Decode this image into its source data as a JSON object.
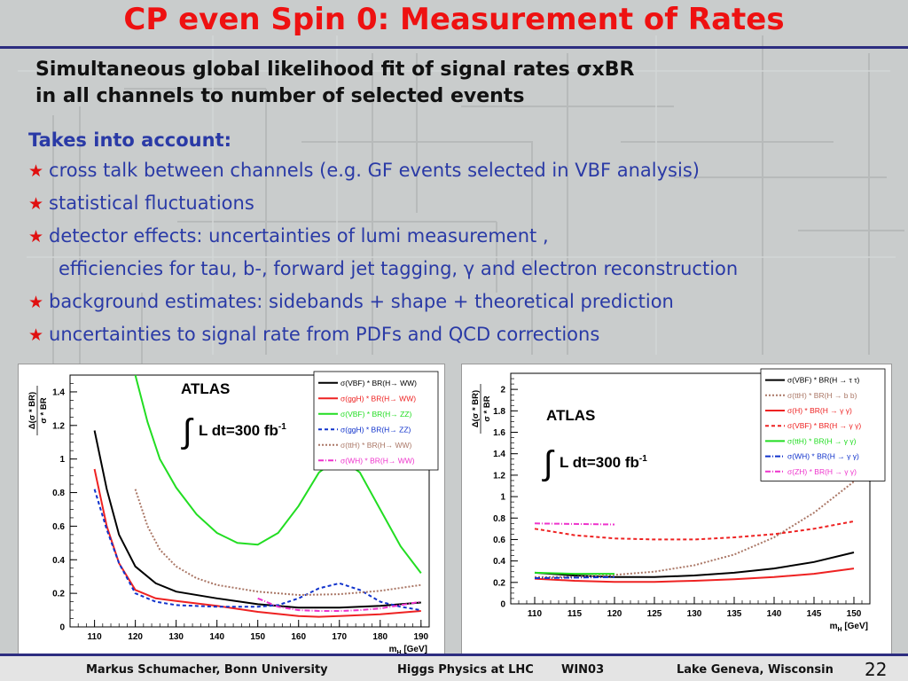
{
  "slide": {
    "title": "CP even Spin 0: Measurement of Rates",
    "subtitle_line1_pre": "Simultaneous global likelihood fit of signal rates ",
    "subtitle_sigma": "σ",
    "subtitle_line1_post": "xBR",
    "subtitle_line2": "in all channels to number of selected events",
    "takes_into_account": "Takes into account:",
    "bullets": [
      "cross talk between channels (e.g. GF events selected in VBF analysis)",
      "statistical fluctuations",
      "detector effects: uncertainties of lumi measurement ,",
      "background estimates: sidebands + shape + theoretical prediction",
      "uncertainties to signal rate from PDFs and QCD corrections"
    ],
    "continuation_pre": "efficiencies for tau, b-, forward jet tagging, ",
    "continuation_gamma": "γ",
    "continuation_post": " and electron reconstruction",
    "star_glyph": "★"
  },
  "footer": {
    "author": "Markus Schumacher,  Bonn University",
    "talk": "Higgs Physics at LHC",
    "conference": "WIN03",
    "location": "Lake Geneva, Wisconsin",
    "page": "22"
  },
  "colors": {
    "title": "#ee1111",
    "bullet_text": "#2a3aa6",
    "star": "#e01010",
    "rule": "#2d2d80"
  },
  "chart_data": [
    {
      "type": "line",
      "atlas_label": "ATLAS",
      "lumi_label": "L dt=300 fb",
      "lumi_exp": "-1",
      "ylabel_num": "Δ(σ * BR)",
      "ylabel_den": "σ * BR",
      "xlabel": "m",
      "xlabel_sub": "H",
      "xlabel_unit": " [GeV]",
      "xlim": [
        104,
        192
      ],
      "ylim": [
        0,
        1.5
      ],
      "xticks": [
        110,
        120,
        130,
        140,
        150,
        160,
        170,
        180,
        190
      ],
      "yticks": [
        0,
        0.2,
        0.4,
        0.6,
        0.8,
        1,
        1.2,
        1.4
      ],
      "series": [
        {
          "name": "σ(VBF) * BR(H→ WW)",
          "color": "#000000",
          "dash": "",
          "x": [
            110,
            113,
            116,
            120,
            125,
            130,
            140,
            150,
            160,
            170,
            180,
            190
          ],
          "y": [
            1.17,
            0.82,
            0.55,
            0.36,
            0.26,
            0.21,
            0.17,
            0.135,
            0.115,
            0.115,
            0.125,
            0.145
          ]
        },
        {
          "name": "σ(ggH) * BR(H→ WW)",
          "color": "#ee2222",
          "dash": "",
          "x": [
            110,
            113,
            116,
            120,
            125,
            130,
            140,
            150,
            160,
            165,
            170,
            180,
            190
          ],
          "y": [
            0.94,
            0.6,
            0.38,
            0.22,
            0.17,
            0.155,
            0.125,
            0.09,
            0.065,
            0.06,
            0.065,
            0.075,
            0.095
          ]
        },
        {
          "name": "σ(VBF) * BR(H→ ZZ)",
          "color": "#22dd22",
          "dash": "",
          "x": [
            120,
            123,
            126,
            130,
            135,
            140,
            145,
            150,
            155,
            160,
            165,
            170,
            175,
            180,
            185,
            190
          ],
          "y": [
            1.5,
            1.22,
            1.0,
            0.83,
            0.67,
            0.56,
            0.5,
            0.49,
            0.56,
            0.72,
            0.92,
            1.01,
            0.92,
            0.7,
            0.48,
            0.32
          ]
        },
        {
          "name": "σ(ggH) * BR(H→ ZZ)",
          "color": "#1133cc",
          "dash": "4,3",
          "x": [
            110,
            113,
            116,
            120,
            125,
            130,
            140,
            150,
            155,
            160,
            165,
            170,
            175,
            180,
            185,
            190
          ],
          "y": [
            0.82,
            0.58,
            0.38,
            0.2,
            0.15,
            0.13,
            0.12,
            0.12,
            0.13,
            0.17,
            0.23,
            0.26,
            0.22,
            0.15,
            0.12,
            0.1
          ]
        },
        {
          "name": "σ(ttH) * BR(H→ WW)",
          "color": "#aa7766",
          "dash": "2,2",
          "x": [
            120,
            123,
            126,
            130,
            135,
            140,
            150,
            160,
            170,
            180,
            190
          ],
          "y": [
            0.82,
            0.6,
            0.46,
            0.36,
            0.29,
            0.25,
            0.21,
            0.19,
            0.195,
            0.215,
            0.25
          ]
        },
        {
          "name": "σ(WH) * BR(H→ WW)",
          "color": "#ee33cc",
          "dash": "6,2,1,2",
          "x": [
            150,
            155,
            160,
            165,
            170,
            175,
            180,
            185,
            190
          ],
          "y": [
            0.17,
            0.12,
            0.1,
            0.095,
            0.095,
            0.1,
            0.11,
            0.13,
            0.15
          ]
        }
      ]
    },
    {
      "type": "line",
      "atlas_label": "ATLAS",
      "lumi_label": "L dt=300 fb",
      "lumi_exp": "-1",
      "ylabel_num": "Δ(σ * BR)",
      "ylabel_den": "σ * BR",
      "xlabel": "m",
      "xlabel_sub": "H",
      "xlabel_unit": " [GeV]",
      "xlim": [
        107,
        152
      ],
      "ylim": [
        0,
        2.15
      ],
      "xticks": [
        110,
        115,
        120,
        125,
        130,
        135,
        140,
        145,
        150
      ],
      "yticks": [
        0,
        0.2,
        0.4,
        0.6,
        0.8,
        1,
        1.2,
        1.4,
        1.6,
        1.8,
        2
      ],
      "series": [
        {
          "name": "σ(VBF) * BR(H → τ τ)",
          "color": "#000000",
          "dash": "",
          "x": [
            110,
            115,
            120,
            125,
            130,
            135,
            140,
            145,
            150
          ],
          "y": [
            0.29,
            0.265,
            0.25,
            0.25,
            0.265,
            0.29,
            0.33,
            0.39,
            0.48
          ]
        },
        {
          "name": "σ(ttH) * BR(H → b b)",
          "color": "#aa7766",
          "dash": "2,2",
          "x": [
            110,
            115,
            120,
            125,
            130,
            135,
            140,
            145,
            150
          ],
          "y": [
            0.25,
            0.25,
            0.27,
            0.3,
            0.36,
            0.46,
            0.62,
            0.85,
            1.14
          ]
        },
        {
          "name": "σ(H) * BR(H → γ γ)",
          "color": "#ee2222",
          "dash": "",
          "x": [
            110,
            115,
            120,
            125,
            130,
            135,
            140,
            145,
            150
          ],
          "y": [
            0.235,
            0.215,
            0.205,
            0.205,
            0.215,
            0.23,
            0.25,
            0.28,
            0.33
          ]
        },
        {
          "name": "σ(VBF) * BR(H → γ γ)",
          "color": "#ee2222",
          "dash": "4,3",
          "x": [
            110,
            115,
            120,
            125,
            130,
            135,
            140,
            145,
            150
          ],
          "y": [
            0.7,
            0.64,
            0.61,
            0.6,
            0.6,
            0.62,
            0.65,
            0.7,
            0.77
          ]
        },
        {
          "name": "σ(ttH) * BR(H → γ γ)",
          "color": "#22dd22",
          "dash": "",
          "x": [
            110,
            115,
            120
          ],
          "y": [
            0.29,
            0.28,
            0.28
          ]
        },
        {
          "name": "σ(WH) * BR(H → γ γ)",
          "color": "#1133cc",
          "dash": "6,2,1,2",
          "x": [
            110,
            115,
            120
          ],
          "y": [
            0.24,
            0.245,
            0.25
          ]
        },
        {
          "name": "σ(ZH) * BR(H → γ γ)",
          "color": "#ee33cc",
          "dash": "6,2,1,2",
          "x": [
            110,
            115,
            120
          ],
          "y": [
            0.75,
            0.745,
            0.74
          ]
        }
      ]
    }
  ]
}
